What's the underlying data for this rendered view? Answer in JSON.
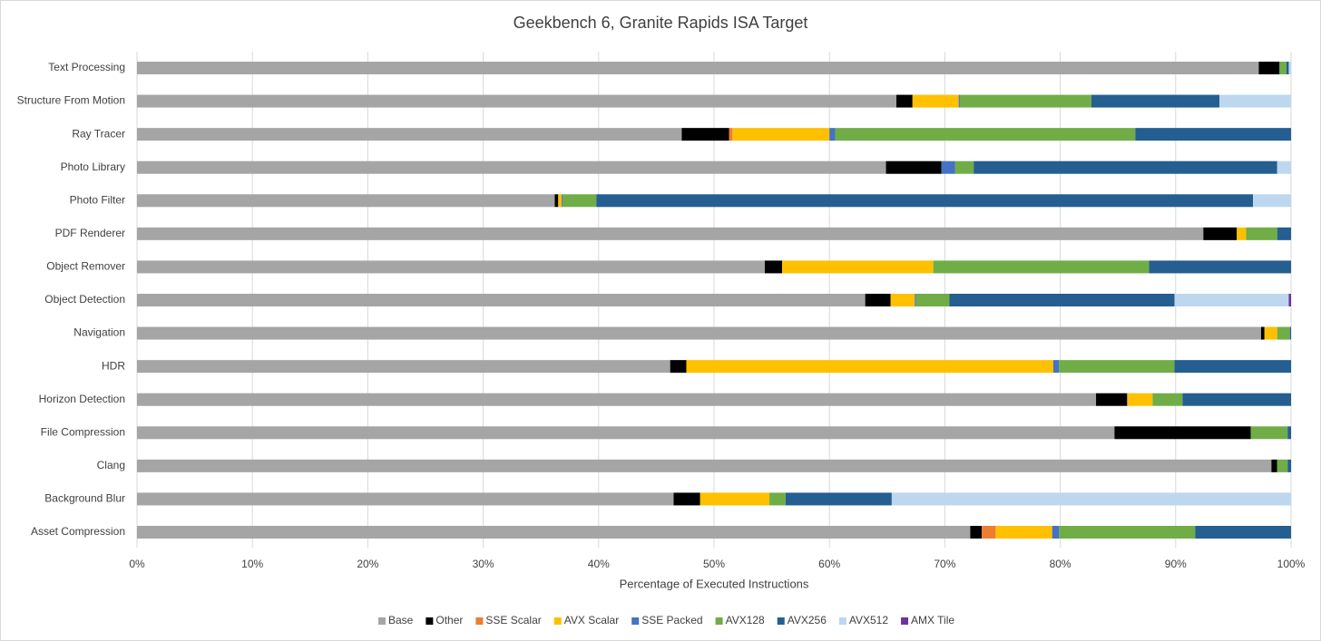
{
  "chart_data": {
    "type": "stacked-bar-horizontal",
    "title": "Geekbench 6, Granite Rapids ISA Target",
    "x_label": "Percentage of Executed Instructions",
    "categories": [
      "Text Processing",
      "Structure From Motion",
      "Ray Tracer",
      "Photo Library",
      "Photo Filter",
      "PDF Renderer",
      "Object Remover",
      "Object Detection",
      "Navigation",
      "HDR",
      "Horizon Detection",
      "File Compression",
      "Clang",
      "Background Blur",
      "Asset Compression"
    ],
    "series": [
      {
        "name": "Base",
        "color": "#a5a5a5",
        "values": [
          97.2,
          65.8,
          47.2,
          64.9,
          36.2,
          92.4,
          54.4,
          63.1,
          97.4,
          46.2,
          83.1,
          84.7,
          98.3,
          46.5,
          72.2
        ]
      },
      {
        "name": "Other",
        "color": "#000000",
        "values": [
          1.8,
          1.4,
          4.1,
          4.8,
          0.3,
          2.9,
          1.5,
          2.2,
          0.3,
          1.4,
          2.7,
          11.8,
          0.5,
          2.3,
          1.0
        ]
      },
      {
        "name": "SSE Scalar",
        "color": "#ed7d31",
        "values": [
          0,
          0,
          0.3,
          0,
          0,
          0,
          0,
          0,
          0,
          0,
          0,
          0,
          0,
          0,
          1.2
        ]
      },
      {
        "name": "AVX Scalar",
        "color": "#ffc000",
        "values": [
          0,
          4.0,
          8.4,
          0,
          0.3,
          0.8,
          13.1,
          2.1,
          1.1,
          31.8,
          2.2,
          0,
          0,
          6.0,
          4.9
        ]
      },
      {
        "name": "SSE Packed",
        "color": "#4472c4",
        "values": [
          0,
          0.1,
          0.5,
          1.2,
          0.1,
          0,
          0,
          0.1,
          0,
          0.5,
          0,
          0,
          0,
          0,
          0.6
        ]
      },
      {
        "name": "AVX128",
        "color": "#70ad47",
        "values": [
          0.6,
          11.4,
          26.0,
          1.6,
          2.9,
          2.7,
          18.7,
          2.9,
          1.1,
          10.0,
          2.6,
          3.2,
          0.9,
          1.4,
          11.8
        ]
      },
      {
        "name": "AVX256",
        "color": "#255e91",
        "values": [
          0.2,
          11.1,
          13.5,
          26.3,
          56.9,
          1.2,
          12.3,
          19.5,
          0.1,
          10.1,
          9.4,
          0.3,
          0.3,
          9.2,
          8.3
        ]
      },
      {
        "name": "AVX512",
        "color": "#bdd7ee",
        "values": [
          0.2,
          6.2,
          0,
          1.2,
          3.3,
          0,
          0,
          9.9,
          0,
          0,
          0,
          0,
          0,
          34.6,
          0
        ]
      },
      {
        "name": "AMX Tile",
        "color": "#7030a0",
        "values": [
          0,
          0,
          0,
          0,
          0,
          0,
          0,
          0.2,
          0,
          0,
          0,
          0,
          0,
          0,
          0
        ]
      }
    ],
    "xlim": [
      0,
      100
    ],
    "xticks": [
      {
        "value": 0,
        "label": "0%"
      },
      {
        "value": 10,
        "label": "10%"
      },
      {
        "value": 20,
        "label": "20%"
      },
      {
        "value": 30,
        "label": "30%"
      },
      {
        "value": 40,
        "label": "40%"
      },
      {
        "value": 50,
        "label": "50%"
      },
      {
        "value": 60,
        "label": "60%"
      },
      {
        "value": 70,
        "label": "70%"
      },
      {
        "value": 80,
        "label": "80%"
      },
      {
        "value": 90,
        "label": "90%"
      },
      {
        "value": 100,
        "label": "100%"
      }
    ],
    "grid": true,
    "legend": "bottom"
  }
}
